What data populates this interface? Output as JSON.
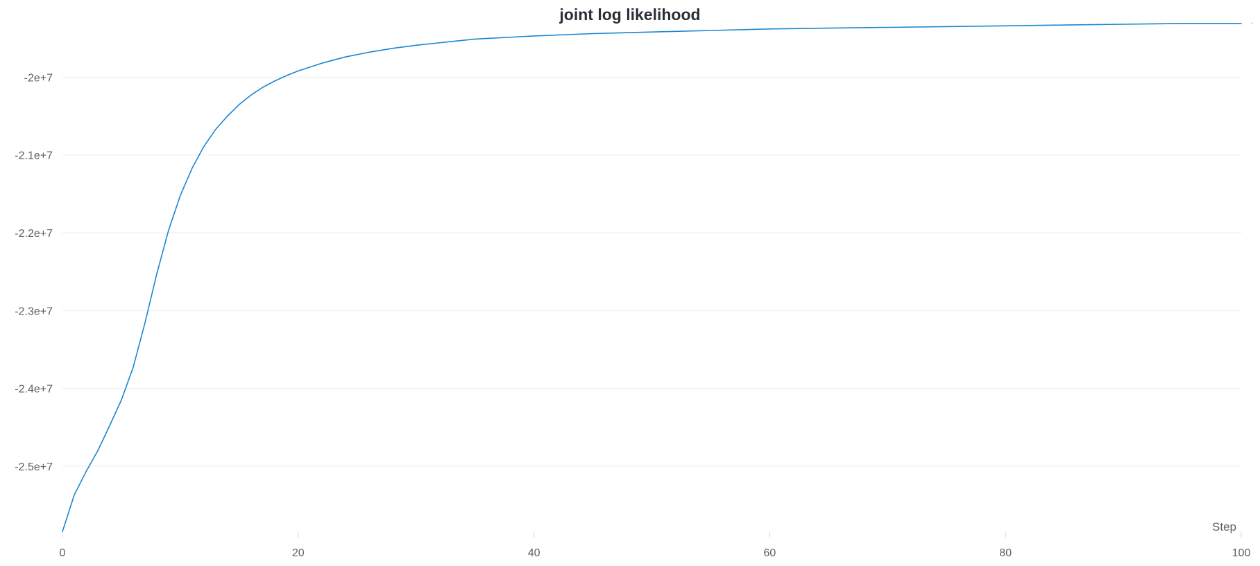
{
  "chart_data": {
    "type": "line",
    "title": "joint log likelihood",
    "xlabel": "Step",
    "ylabel": "",
    "xlim": [
      0,
      100
    ],
    "ylim": [
      -25900000,
      -19400000
    ],
    "x_ticks": [
      0,
      20,
      40,
      60,
      80,
      100
    ],
    "x_tick_labels": [
      "0",
      "20",
      "40",
      "60",
      "80",
      "100"
    ],
    "y_ticks": [
      -20000000,
      -21000000,
      -22000000,
      -23000000,
      -24000000,
      -25000000
    ],
    "y_tick_labels": [
      "-2e+7",
      "-2.1e+7",
      "-2.2e+7",
      "-2.3e+7",
      "-2.4e+7",
      "-2.5e+7"
    ],
    "grid": true,
    "colors": {
      "series": "#1a86d0",
      "grid": "#ebebeb",
      "text": "#5a5f66",
      "title": "#2b2f36"
    },
    "series": [
      {
        "color": "#1a86d0",
        "x": [
          0,
          1,
          2,
          3,
          4,
          5,
          6,
          7,
          8,
          9,
          10,
          11,
          12,
          13,
          14,
          15,
          16,
          17,
          18,
          19,
          20,
          22,
          24,
          26,
          28,
          30,
          35,
          40,
          45,
          50,
          55,
          60,
          65,
          70,
          75,
          80,
          85,
          90,
          95,
          100
        ],
        "y": [
          -25840000,
          -25370000,
          -25070000,
          -24800000,
          -24480000,
          -24150000,
          -23730000,
          -23160000,
          -22530000,
          -21970000,
          -21520000,
          -21170000,
          -20890000,
          -20670000,
          -20500000,
          -20350000,
          -20230000,
          -20130000,
          -20050000,
          -19980000,
          -19920000,
          -19820000,
          -19740000,
          -19680000,
          -19630000,
          -19590000,
          -19510000,
          -19470000,
          -19440000,
          -19420000,
          -19400000,
          -19380000,
          -19370000,
          -19360000,
          -19350000,
          -19340000,
          -19330000,
          -19320000,
          -19310000,
          -19310000
        ]
      }
    ]
  }
}
